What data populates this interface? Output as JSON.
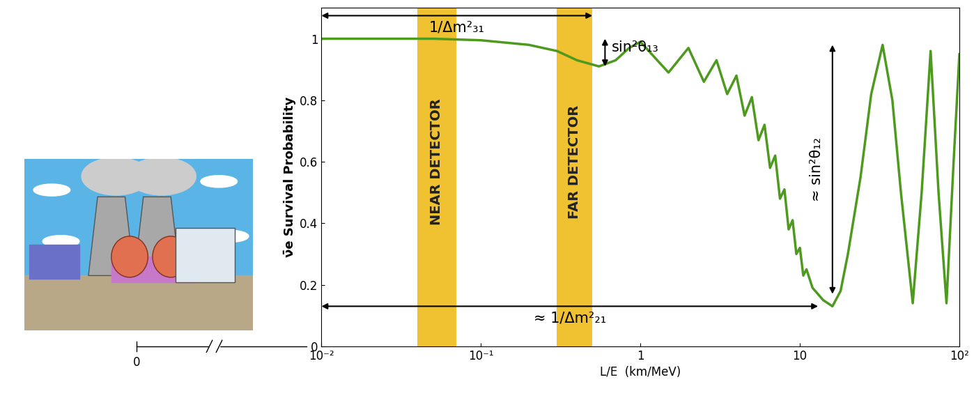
{
  "chart_data": {
    "type": "line",
    "xlabel": "L/E  (km/MeV)",
    "ylabel": "ν̄e Survival Probability",
    "log": "x",
    "xlim": [
      0.01,
      100
    ],
    "ylim": [
      0,
      1.1
    ],
    "xticks": [
      {
        "value": 0.01,
        "label": "10⁻²"
      },
      {
        "value": 0.1,
        "label": "10⁻¹"
      },
      1,
      10,
      {
        "value": 100,
        "label": "10²"
      }
    ],
    "yticks": [
      0,
      0.2,
      0.4,
      0.6,
      0.8,
      1
    ],
    "x": [
      0.01,
      0.05,
      0.1,
      0.2,
      0.3,
      0.4,
      0.55,
      0.7,
      0.85,
      1,
      1.5,
      2,
      2.5,
      3,
      3.5,
      4,
      4.5,
      5,
      5.5,
      6,
      6.5,
      7,
      7.5,
      8,
      8.5,
      9,
      9.5,
      10,
      10.5,
      11,
      12,
      14,
      16,
      18,
      20,
      24,
      28,
      33,
      38,
      43,
      51,
      58,
      66,
      74,
      83,
      92,
      100
    ],
    "series": [
      {
        "name": "ν̄e survival",
        "color": "#4e9a1e",
        "values": [
          1,
          1,
          0.995,
          0.98,
          0.96,
          0.93,
          0.91,
          0.93,
          0.97,
          0.99,
          0.89,
          0.97,
          0.86,
          0.93,
          0.82,
          0.88,
          0.75,
          0.81,
          0.67,
          0.72,
          0.58,
          0.62,
          0.48,
          0.51,
          0.38,
          0.41,
          0.3,
          0.32,
          0.23,
          0.25,
          0.19,
          0.15,
          0.13,
          0.18,
          0.3,
          0.55,
          0.82,
          0.98,
          0.8,
          0.5,
          0.14,
          0.5,
          0.96,
          0.5,
          0.14,
          0.6,
          0.95
        ]
      }
    ],
    "bands": [
      {
        "label": "NEAR DETECTOR",
        "range": [
          0.04,
          0.07
        ],
        "color": "#f0c232"
      },
      {
        "label": "FAR DETECTOR",
        "range": [
          0.3,
          0.5
        ],
        "color": "#f0c232"
      }
    ],
    "arrows": [
      {
        "label": "1/Δm²₃₁",
        "direction": "horizontal",
        "from": [
          0.01,
          1.075
        ],
        "to": [
          0.5,
          1.075
        ]
      },
      {
        "label": "sin²θ₁₃",
        "direction": "vertical",
        "from": [
          0.6,
          1.0
        ],
        "to": [
          0.6,
          0.91
        ]
      },
      {
        "label": "≈ 1/Δm²₂₁",
        "direction": "horizontal",
        "from": [
          0.01,
          0.13
        ],
        "to": [
          13,
          0.13
        ]
      },
      {
        "label": "≈ sin²θ₁₂",
        "direction": "vertical",
        "from": [
          16,
          0.17
        ],
        "to": [
          16,
          0.98
        ]
      }
    ],
    "axis_break": {
      "label": "0"
    }
  }
}
